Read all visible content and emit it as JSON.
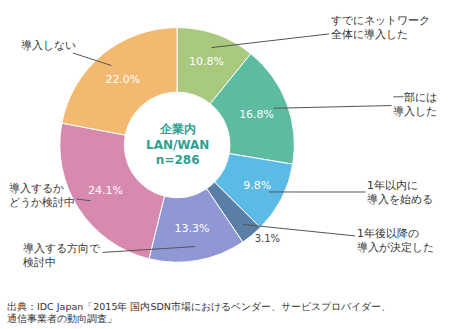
{
  "chart_data": {
    "type": "pie",
    "title": "企業内\nLAN/WAN",
    "subtitle": "n=286",
    "categories": [
      "すでにネットワーク\n全体に導入した",
      "一部には\n導入した",
      "1年以内に\n導入を始める",
      "1年後以降の\n導入が決定した",
      "導入する方向で\n検討中",
      "導入するか\nどうか検討中",
      "導入しない"
    ],
    "values": [
      10.8,
      16.8,
      9.8,
      3.1,
      13.3,
      24.1,
      22.0
    ],
    "value_labels": [
      "10.8%",
      "16.8%",
      "9.8%",
      "3.1%",
      "13.3%",
      "24.1%",
      "22.0%"
    ],
    "colors": [
      "#a9c97e",
      "#5dbba2",
      "#5cbbe6",
      "#5a7fa6",
      "#8f97d4",
      "#d889b0",
      "#f4b970"
    ],
    "data_labels": true,
    "annotations": [
      "出典：IDC Japan「2015年 国内SDN市場におけるベンダー、サービスプロバイダー、\n通信事業者の動向調査」"
    ]
  }
}
